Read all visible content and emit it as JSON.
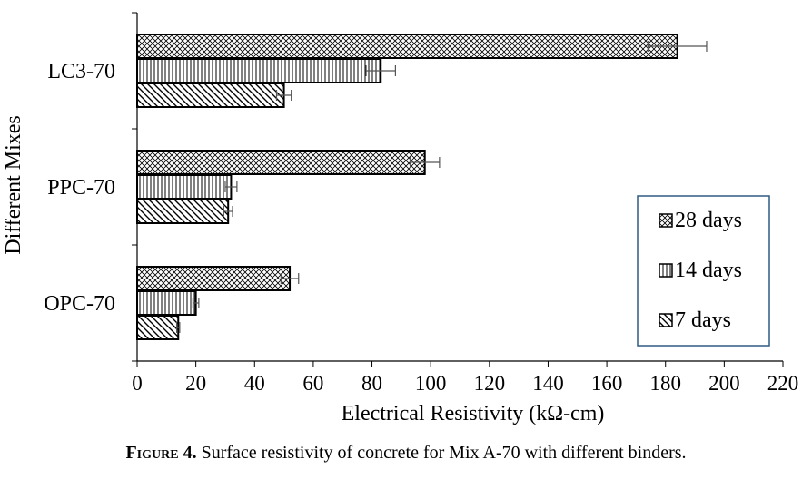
{
  "chart_data": {
    "type": "bar",
    "orientation": "horizontal",
    "categories": [
      "OPC-70",
      "PPC-70",
      "LC3-70"
    ],
    "series": [
      {
        "name": "28 days",
        "values": [
          52,
          98,
          184
        ],
        "errors": [
          3,
          5,
          10
        ],
        "pattern": "crosshatch"
      },
      {
        "name": "14 days",
        "values": [
          20,
          32,
          83
        ],
        "errors": [
          1,
          2,
          5
        ],
        "pattern": "vertical"
      },
      {
        "name": "7 days",
        "values": [
          14,
          31,
          50
        ],
        "errors": [
          0.5,
          1.5,
          2.5
        ],
        "pattern": "diagonal"
      }
    ],
    "xlabel": "Electrical Resistivity (kΩ-cm)",
    "ylabel": "Different Mixes",
    "xlim": [
      0,
      220
    ],
    "xticks": [
      "0",
      "20",
      "40",
      "60",
      "80",
      "100",
      "120",
      "140",
      "160",
      "180",
      "200",
      "220"
    ],
    "grid": false,
    "legend_position": "bottom-right",
    "legend_border_color": "#2e5b84"
  },
  "caption": {
    "label": "Figure 4.",
    "text": " Surface resistivity of concrete for Mix A-70 with different binders."
  }
}
